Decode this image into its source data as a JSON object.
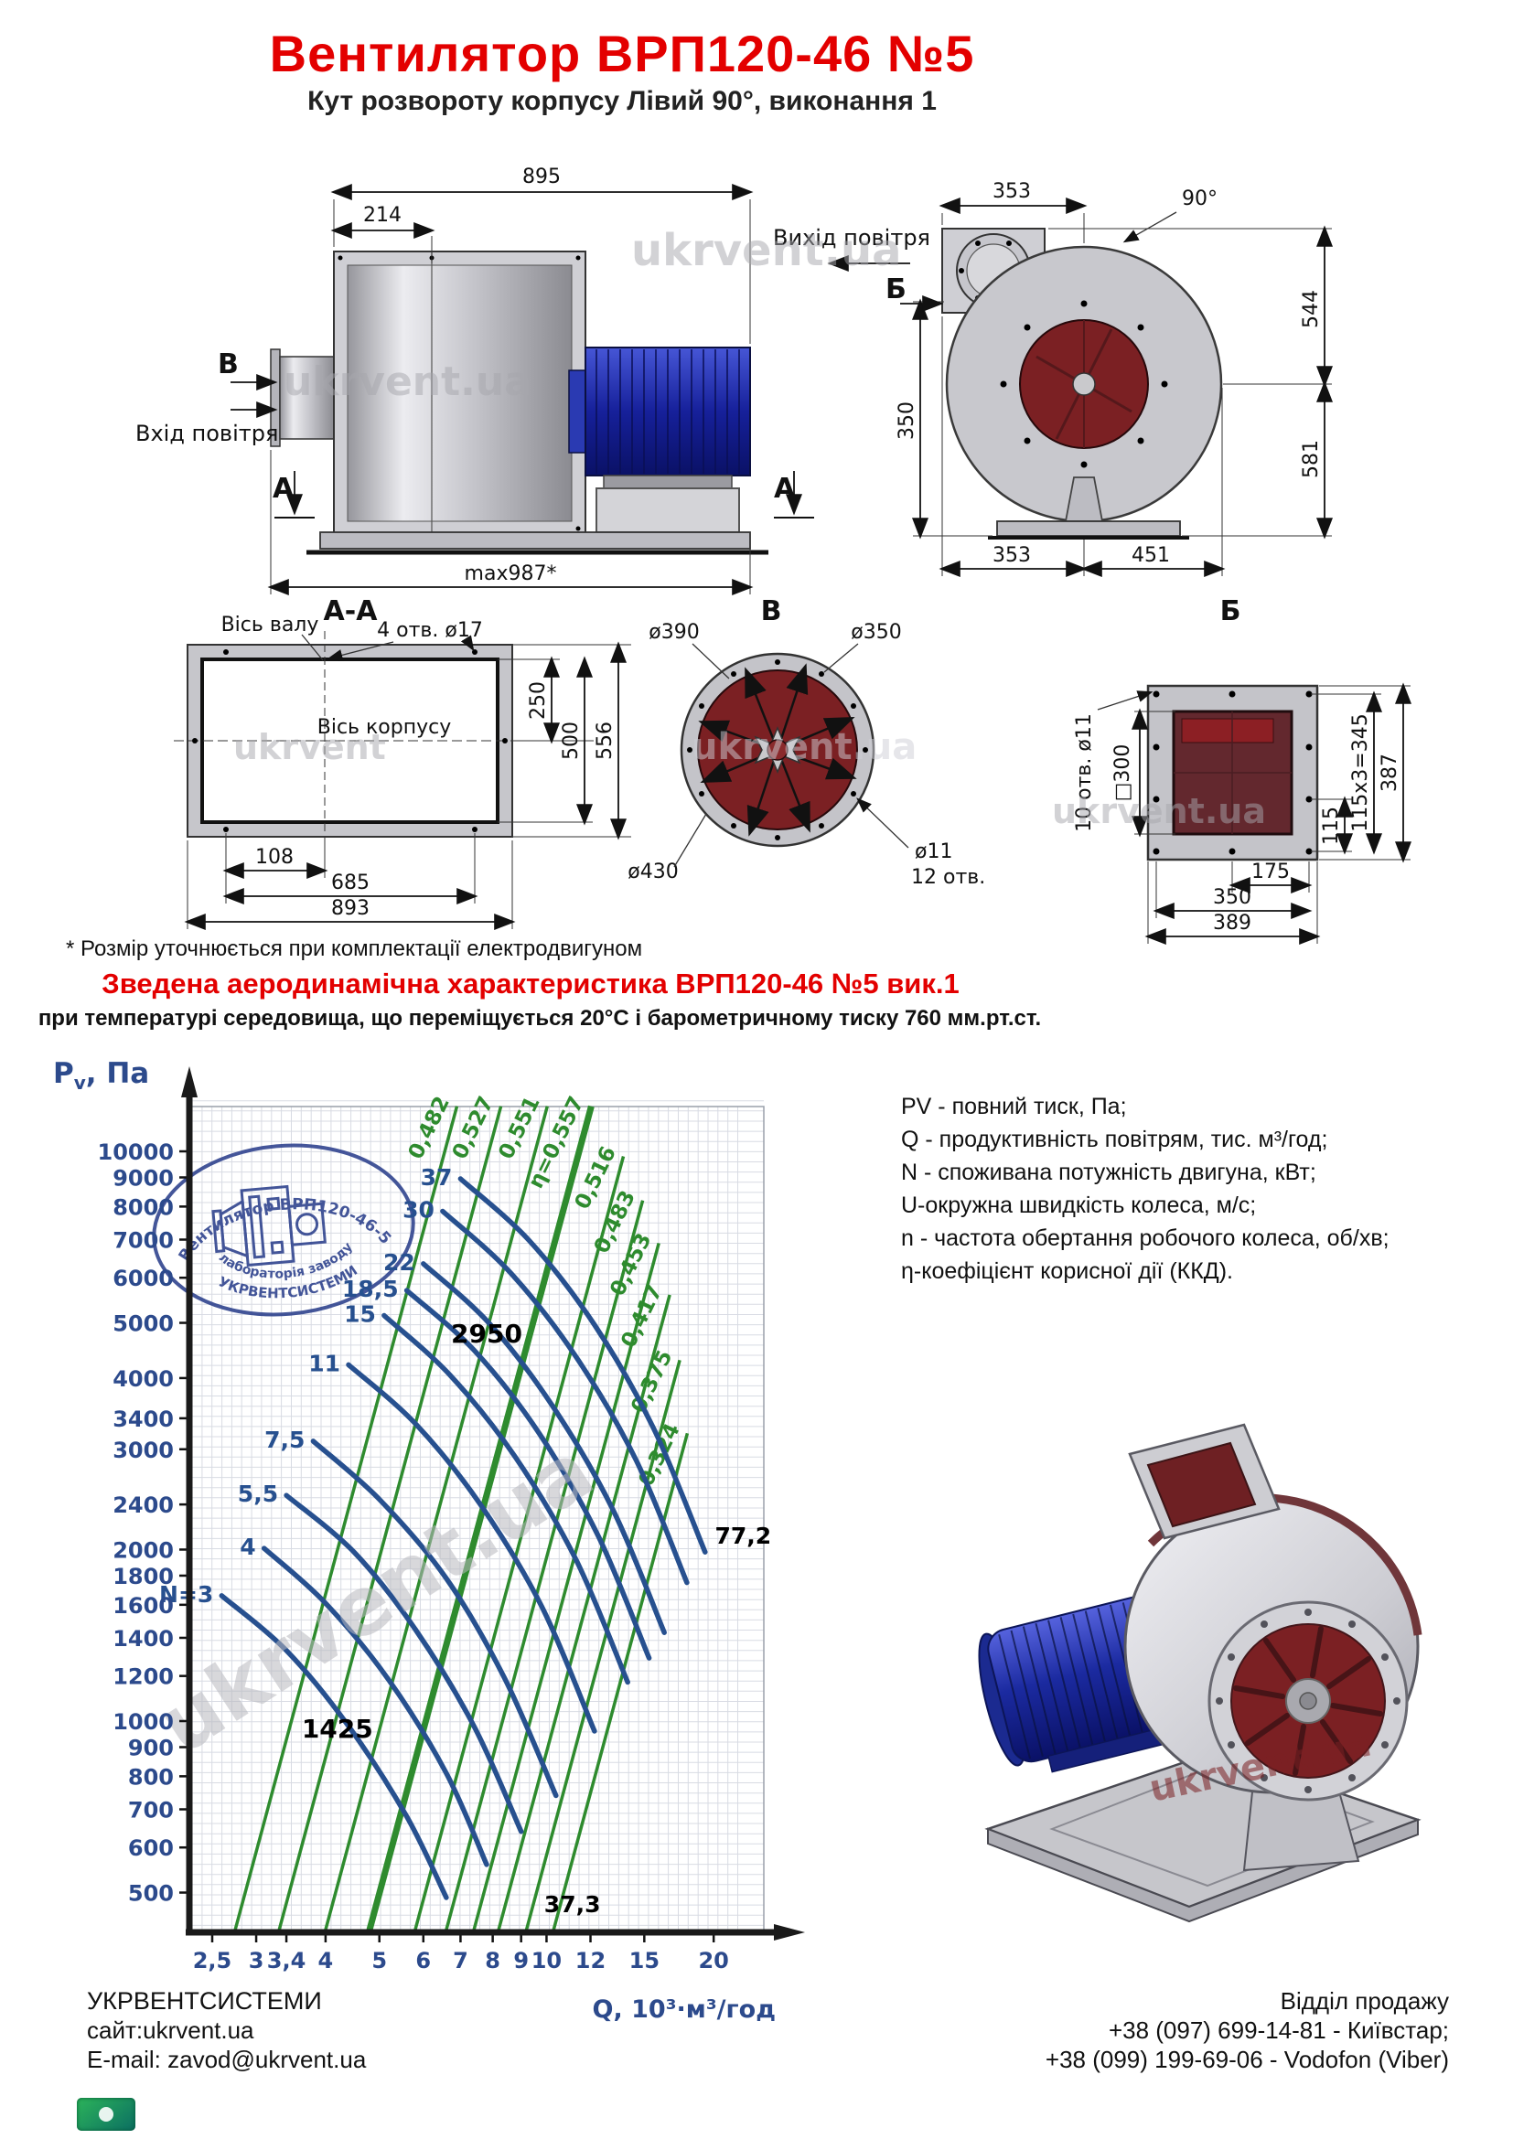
{
  "header": {
    "title": "Вентилятор  ВРП120-46 №5",
    "subtitle": "Кут розвороту корпусу Лівий 90°, виконання 1"
  },
  "watermark": "ukrvent.ua",
  "drawings": {
    "side_view": {
      "dim_total_top": "895",
      "dim_inlet_depth": "214",
      "dim_total_bottom": "max987*",
      "view_label_v": "В",
      "view_label_a_left": "А",
      "view_label_a_right": "А",
      "inlet_label": "Вхід повітря"
    },
    "front_view": {
      "outlet_label": "Вихід повітря",
      "view_label_b": "Б",
      "dim_top": "353",
      "angle": "90°",
      "dim_left": "350",
      "dim_right_top": "544",
      "dim_right_bottom": "581",
      "dim_bottom_left": "353",
      "dim_bottom_right": "451"
    },
    "section_aa": {
      "title": "А-А",
      "shaft_axis": "Вісь валу",
      "holes": "4 отв. ø17",
      "body_axis": "Вісь корпусу",
      "dim_250": "250",
      "dim_500": "500",
      "dim_556": "556",
      "dim_108": "108",
      "dim_685": "685",
      "dim_893": "893"
    },
    "view_v": {
      "title": "В",
      "dim_390": "ø390",
      "dim_350": "ø350",
      "dim_430": "ø430",
      "dim_11": "ø11",
      "holes": "12 отв."
    },
    "view_b": {
      "title": "Б",
      "holes": "10 отв. ø11",
      "square": "□300",
      "dim_115": "115",
      "dim_115x3": "115x3=345",
      "dim_387": "387",
      "dim_175": "175",
      "dim_350": "350",
      "dim_389": "389"
    },
    "footnote": "* Розмір уточнюється при комплектації електродвигуном"
  },
  "chart": {
    "title": "Зведена аеродинамічна характеристика ВРП120-46 №5 вик.1",
    "subtitle": "при температурі середовища, що переміщується 20°С і барометричному тиску 760 мм.рт.ст.",
    "y_axis_label": "P",
    "y_axis_sub": "v",
    "y_axis_unit": ", Па",
    "x_axis_label": "Q, 10³·м³/год"
  },
  "chart_data": {
    "type": "line",
    "x_label": "Q, 10³·м³/год",
    "y_label": "Pv, Па",
    "x_scale": "log",
    "y_scale": "log",
    "x_ticks": [
      "2,5",
      "3",
      "3,4",
      "4",
      "5",
      "6",
      "7",
      "8",
      "9",
      "10",
      "12",
      "15",
      "20"
    ],
    "x_tick_values": [
      2.5,
      3,
      3.4,
      4,
      5,
      6,
      7,
      8,
      9,
      10,
      12,
      15,
      20
    ],
    "y_ticks": [
      10000,
      9000,
      8000,
      7000,
      6000,
      5000,
      4000,
      3400,
      3000,
      2400,
      2000,
      1800,
      1600,
      1400,
      1200,
      1000,
      900,
      800,
      700,
      600,
      500
    ],
    "x_range": [
      2.3,
      23
    ],
    "y_range": [
      430,
      12600
    ],
    "slope_log": 3.62,
    "colors": {
      "power": "#27508f",
      "efficiency": "#2e8b2e",
      "fan": "#e10000",
      "axis": "#1a1a1a",
      "ticks": "#2c4a8c"
    },
    "fan_curves": [
      {
        "rpm_label": "2950",
        "end_label": "77,2",
        "points": [
          [
            2.5,
            4180
          ],
          [
            3.5,
            4330
          ],
          [
            5,
            4420
          ],
          [
            6.5,
            4400
          ],
          [
            8,
            4230
          ],
          [
            10,
            3860
          ],
          [
            12,
            3380
          ],
          [
            15,
            2850
          ],
          [
            18,
            2480
          ],
          [
            20,
            2260
          ]
        ],
        "label_at": [
          7.8,
          4620
        ],
        "end_label_at": [
          20.1,
          2050
        ]
      },
      {
        "rpm_label": "1425",
        "end_label": "37,3",
        "points": [
          [
            2.3,
            1020
          ],
          [
            3,
            1062
          ],
          [
            4,
            1075
          ],
          [
            5,
            1040
          ],
          [
            6,
            965
          ],
          [
            7,
            865
          ],
          [
            8,
            740
          ],
          [
            9,
            592
          ],
          [
            9.6,
            508
          ]
        ],
        "label_at": [
          4.2,
          935
        ],
        "end_label_at": [
          9.9,
          462
        ]
      }
    ],
    "power_curves_unit": "кВт",
    "power_curves": [
      {
        "label": "N=3",
        "points": [
          [
            2.6,
            1660
          ],
          [
            3.4,
            1330
          ],
          [
            4.4,
            980
          ],
          [
            5.6,
            680
          ],
          [
            6.6,
            490
          ]
        ]
      },
      {
        "label": "4",
        "points": [
          [
            3.1,
            2010
          ],
          [
            4.0,
            1610
          ],
          [
            5.2,
            1180
          ],
          [
            6.6,
            810
          ],
          [
            7.8,
            560
          ]
        ]
      },
      {
        "label": "5,5",
        "points": [
          [
            3.4,
            2490
          ],
          [
            4.5,
            1980
          ],
          [
            5.8,
            1450
          ],
          [
            7.4,
            980
          ],
          [
            9.0,
            640
          ]
        ]
      },
      {
        "label": "7,5",
        "points": [
          [
            3.8,
            3100
          ],
          [
            5.0,
            2450
          ],
          [
            6.6,
            1780
          ],
          [
            8.4,
            1190
          ],
          [
            10.4,
            740
          ]
        ]
      },
      {
        "label": "11",
        "points": [
          [
            4.4,
            4220
          ],
          [
            5.8,
            3330
          ],
          [
            7.6,
            2400
          ],
          [
            9.8,
            1590
          ],
          [
            12.2,
            960
          ]
        ]
      },
      {
        "label": "15",
        "points": [
          [
            5.1,
            5150
          ],
          [
            6.7,
            4050
          ],
          [
            8.8,
            2900
          ],
          [
            11.3,
            1920
          ],
          [
            14.0,
            1170
          ]
        ]
      },
      {
        "label": "18,5",
        "points": [
          [
            5.6,
            5700
          ],
          [
            7.4,
            4480
          ],
          [
            9.7,
            3200
          ],
          [
            12.4,
            2110
          ],
          [
            15.3,
            1290
          ]
        ]
      },
      {
        "label": "22",
        "points": [
          [
            6.0,
            6350
          ],
          [
            7.9,
            4980
          ],
          [
            10.3,
            3550
          ],
          [
            13.2,
            2340
          ],
          [
            16.3,
            1430
          ]
        ]
      },
      {
        "label": "30",
        "points": [
          [
            6.5,
            7850
          ],
          [
            8.6,
            6130
          ],
          [
            11.3,
            4360
          ],
          [
            14.5,
            2870
          ],
          [
            17.9,
            1750
          ]
        ]
      },
      {
        "label": "37",
        "points": [
          [
            7.0,
            8950
          ],
          [
            9.3,
            6980
          ],
          [
            12.2,
            4960
          ],
          [
            15.6,
            3260
          ],
          [
            19.3,
            1980
          ]
        ]
      }
    ],
    "efficiency_lines": [
      {
        "label": "0,482",
        "q_bottom": 2.75,
        "p_bottom": 430,
        "p_top": 12000,
        "thick": false
      },
      {
        "label": "0,527",
        "q_bottom": 3.3,
        "p_bottom": 430,
        "p_top": 12000,
        "thick": false
      },
      {
        "label": "0,551",
        "q_bottom": 4.0,
        "p_bottom": 430,
        "p_top": 12000,
        "thick": false
      },
      {
        "label": "η=0,557",
        "q_bottom": 4.8,
        "p_bottom": 430,
        "p_top": 12000,
        "thick": true
      },
      {
        "label": "0,516",
        "q_bottom": 5.8,
        "p_bottom": 430,
        "p_top": 9800,
        "thick": false
      },
      {
        "label": "0,483",
        "q_bottom": 6.6,
        "p_bottom": 430,
        "p_top": 8200,
        "thick": false
      },
      {
        "label": "0,453",
        "q_bottom": 7.4,
        "p_bottom": 430,
        "p_top": 6900,
        "thick": false
      },
      {
        "label": "0,417",
        "q_bottom": 8.2,
        "p_bottom": 430,
        "p_top": 5600,
        "thick": false
      },
      {
        "label": "0,375",
        "q_bottom": 9.2,
        "p_bottom": 430,
        "p_top": 4300,
        "thick": false
      },
      {
        "label": "0,324",
        "q_bottom": 10.3,
        "p_bottom": 430,
        "p_top": 3200,
        "thick": false
      }
    ]
  },
  "stamp": {
    "arc_top": "Вентилятор ВРП120-46-5",
    "arc_bottom_inner": "лабораторія заводу",
    "arc_bottom_outer": "УКРВЕНТСИСТЕМИ",
    "color": "#2b3f8c"
  },
  "legend": {
    "lines": [
      "PV - повний тиск, Па;",
      "Q - продуктивність повітрям, тис. м³/год;",
      "N - споживана потужність двигуна, кВт;",
      "U-окружна швидкість колеса, м/с;",
      "n - частота обертання робочого колеса, об/хв;",
      "η-коефіцієнт корисної дії (ККД)."
    ]
  },
  "footer": {
    "company": "УКРВЕНТСИСТЕМИ",
    "site": "сайт:ukrvent.ua",
    "email": "E-mail: zavod@ukrvent.ua",
    "sales_title": "Відділ продажу",
    "phone1": "+38 (097) 699-14-81 - Київстар;",
    "phone2": "+38 (099) 199-69-06 - Vodofon (Viber)"
  }
}
